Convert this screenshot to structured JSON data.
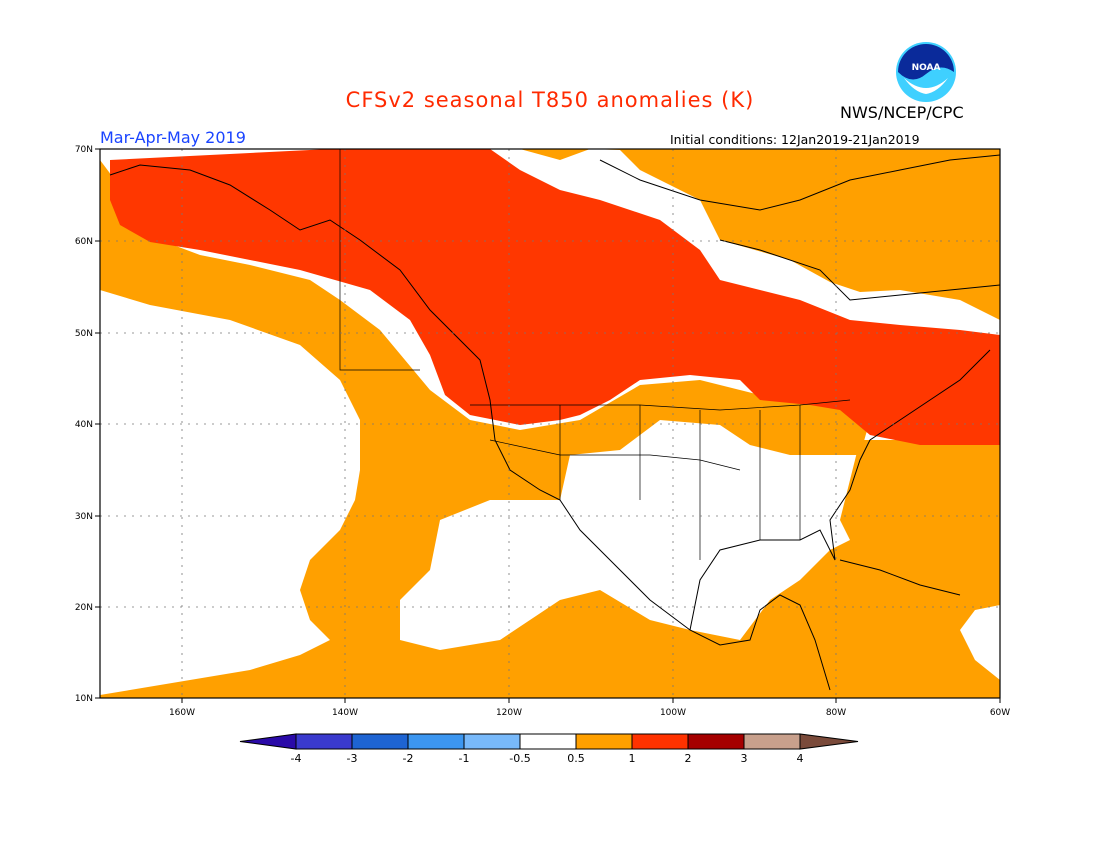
{
  "header": {
    "title": "CFSv2 seasonal T850 anomalies (K)",
    "agency": "NWS/NCEP/CPC",
    "period": "Mar-Apr-May 2019",
    "initial_conditions": "Initial conditions: 12Jan2019-21Jan2019",
    "logo_text": "NOAA"
  },
  "axes": {
    "lat_labels": [
      "70N",
      "60N",
      "50N",
      "40N",
      "30N",
      "20N",
      "10N"
    ],
    "lon_labels": [
      "160W",
      "140W",
      "120W",
      "100W",
      "80W",
      "60W"
    ]
  },
  "legend": {
    "labels": [
      "-4",
      "-3",
      "-2",
      "-1",
      "-0.5",
      "0.5",
      "1",
      "2",
      "3",
      "4"
    ],
    "colors": [
      "#2a0aa8",
      "#3a3acd",
      "#1e64d2",
      "#3c96f0",
      "#78b9fa",
      "#ffffff",
      "#ffa000",
      "#ff3200",
      "#a50000",
      "#c8a08c",
      "#7a4a3a"
    ]
  },
  "field": {
    "anomaly_colors": {
      "above_0.5": "#ffa000",
      "above_1": "#ff3700",
      "near_normal": "#ffffff"
    }
  }
}
